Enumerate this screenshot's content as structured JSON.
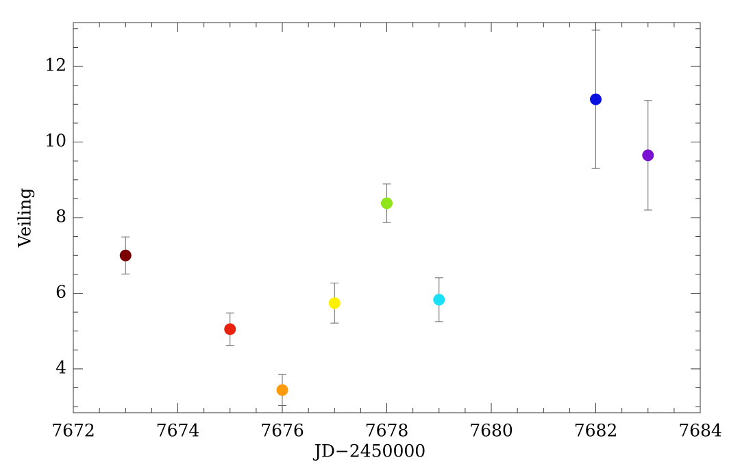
{
  "chart_data": {
    "type": "scatter",
    "x_label": "JD−2450000",
    "y_label": "Veiling",
    "x": [
      7673,
      7675,
      7676,
      7677,
      7678,
      7679,
      7682,
      7683
    ],
    "values": [
      7.0,
      5.05,
      3.44,
      5.74,
      8.38,
      5.83,
      11.13,
      9.65
    ],
    "errors": [
      0.49,
      0.43,
      0.41,
      0.53,
      0.51,
      0.58,
      1.83,
      1.45
    ],
    "colors": [
      "#7a0000",
      "#e8210e",
      "#ff9a0a",
      "#fff000",
      "#8fe41a",
      "#1ae0f5",
      "#0a10e0",
      "#7a10d0"
    ],
    "xlim": [
      7672,
      7684
    ],
    "ylim": [
      2.84,
      13.16
    ],
    "xticks": [
      7672,
      7674,
      7676,
      7678,
      7680,
      7682,
      7684
    ],
    "yticks": [
      4,
      6,
      8,
      10,
      12
    ],
    "xminorticks": [
      7672.5,
      7673,
      7673.5,
      7674.5,
      7675,
      7675.5,
      7676.5,
      7677,
      7677.5,
      7678.5,
      7679,
      7679.5,
      7680.5,
      7681,
      7681.5,
      7682.5,
      7683,
      7683.5
    ],
    "yminorticks": [
      3,
      3.5,
      4.5,
      5,
      5.5,
      6.5,
      7,
      7.5,
      8.5,
      9,
      9.5,
      10.5,
      11,
      11.5,
      12.5,
      13
    ]
  }
}
